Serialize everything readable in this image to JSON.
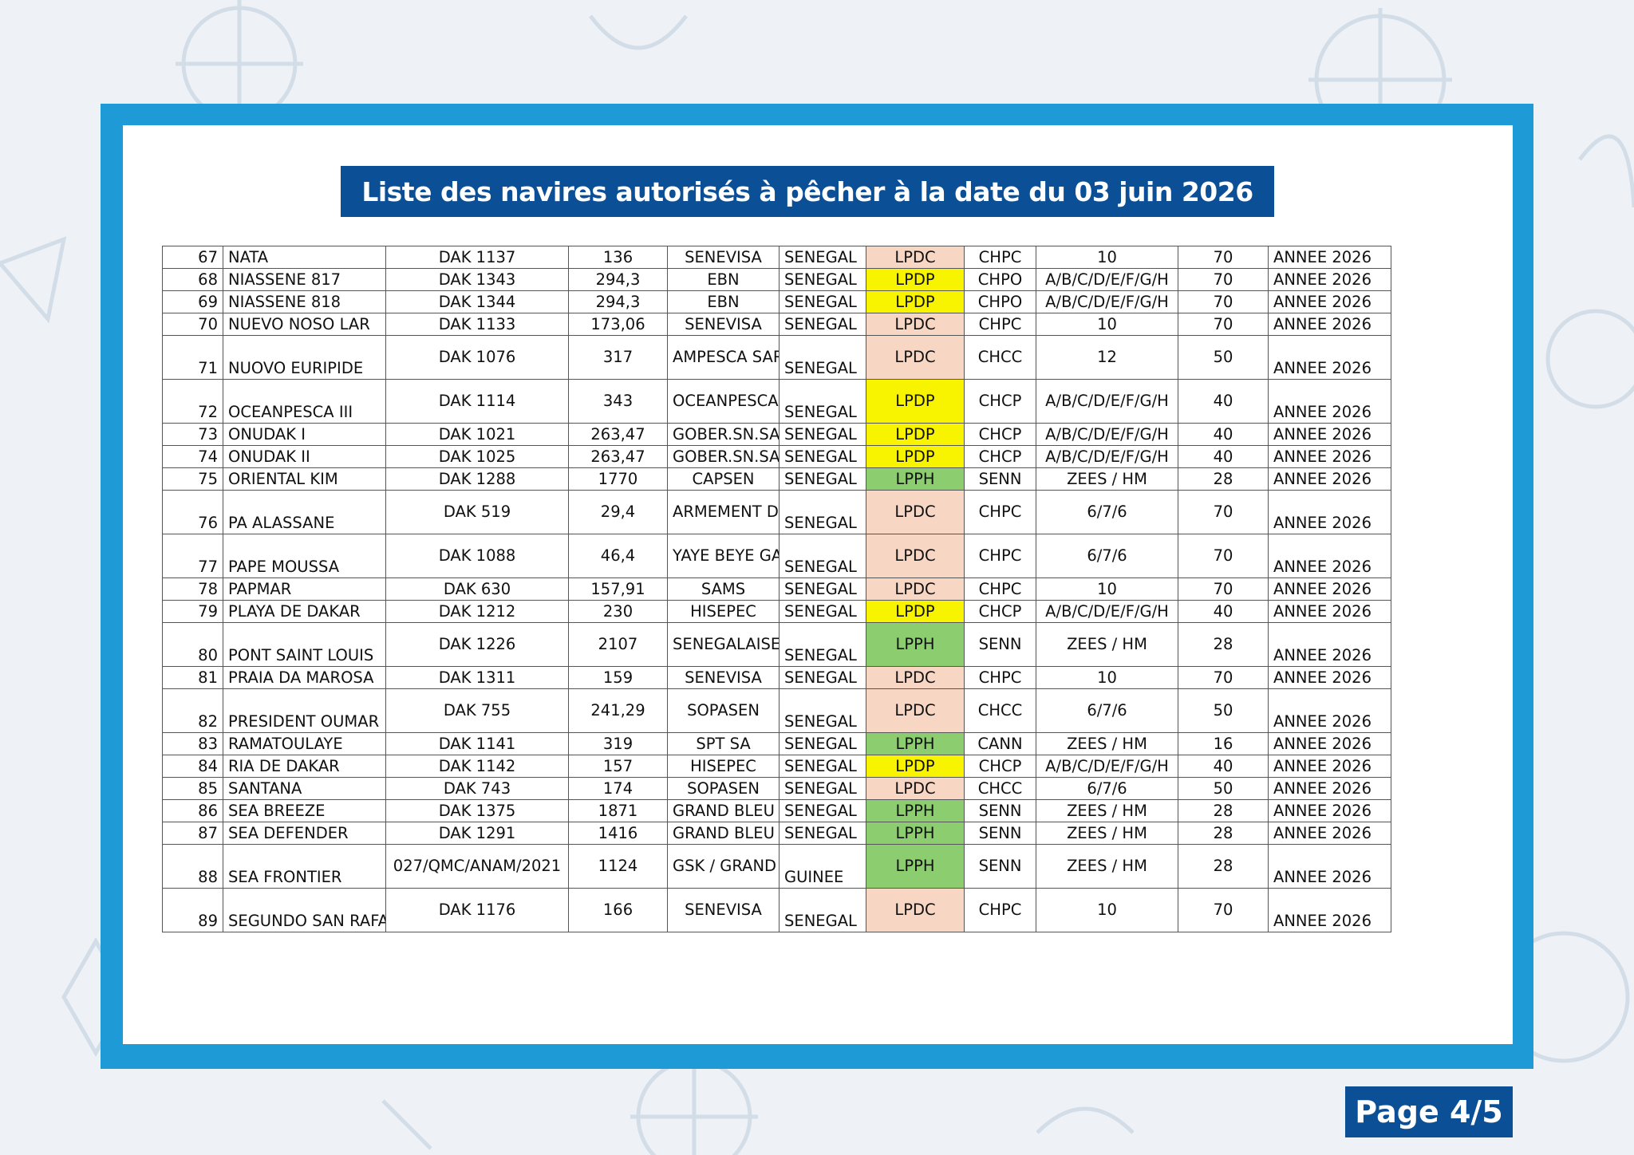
{
  "title": "Liste des navires autorisés à pêcher à la date du 03 juin 2026",
  "page_label": "Page 4/5",
  "colors": {
    "frame": "#1e9ad6",
    "title_bg": "#0b4f96",
    "LPDC": "#f7d6c4",
    "LPDP": "#f8f400",
    "LPPH": "#8ccd70"
  },
  "rows": [
    {
      "no": "67",
      "name": "NATA",
      "reg": "DAK 1137",
      "gt": "136",
      "owner": "SENEVISA",
      "flag": "SENEGAL",
      "licence": "LPDC",
      "type": "CHPC",
      "zones": "10",
      "val": "70",
      "period": "ANNEE 2026"
    },
    {
      "no": "68",
      "name": "NIASSENE 817",
      "reg": "DAK 1343",
      "gt": "294,3",
      "owner": "EBN",
      "flag": "SENEGAL",
      "licence": "LPDP",
      "type": "CHPO",
      "zones": "A/B/C/D/E/F/G/H",
      "val": "70",
      "period": "ANNEE 2026"
    },
    {
      "no": "69",
      "name": "NIASSENE 818",
      "reg": "DAK 1344",
      "gt": "294,3",
      "owner": "EBN",
      "flag": "SENEGAL",
      "licence": "LPDP",
      "type": "CHPO",
      "zones": "A/B/C/D/E/F/G/H",
      "val": "70",
      "period": "ANNEE 2026"
    },
    {
      "no": "70",
      "name": "NUEVO NOSO LAR",
      "reg": "DAK 1133",
      "gt": "173,06",
      "owner": "SENEVISA",
      "flag": "SENEGAL",
      "licence": "LPDC",
      "type": "CHPC",
      "zones": "10",
      "val": "70",
      "period": "ANNEE 2026"
    },
    {
      "no": "71",
      "name": "NUOVO EURIPIDE",
      "reg": "DAK 1076",
      "gt": "317",
      "owner": "AMPESCA SARL",
      "flag": "SENEGAL",
      "licence": "LPDC",
      "type": "CHCC",
      "zones": "12",
      "val": "50",
      "period": "ANNEE 2026",
      "tall": true
    },
    {
      "no": "72",
      "name": "OCEANPESCA III",
      "reg": "DAK 1114",
      "gt": "343",
      "owner": "OCEANPESCA II",
      "flag": "SENEGAL",
      "licence": "LPDP",
      "type": "CHCP",
      "zones": "A/B/C/D/E/F/G/H",
      "val": "40",
      "period": "ANNEE 2026",
      "tall": true
    },
    {
      "no": "73",
      "name": "ONUDAK I",
      "reg": "DAK 1021",
      "gt": "263,47",
      "owner": "GOBER.SN.SA",
      "flag": "SENEGAL",
      "licence": "LPDP",
      "type": "CHCP",
      "zones": "A/B/C/D/E/F/G/H",
      "val": "40",
      "period": "ANNEE 2026"
    },
    {
      "no": "74",
      "name": "ONUDAK II",
      "reg": "DAK 1025",
      "gt": "263,47",
      "owner": "GOBER.SN.SA",
      "flag": "SENEGAL",
      "licence": "LPDP",
      "type": "CHCP",
      "zones": "A/B/C/D/E/F/G/H",
      "val": "40",
      "period": "ANNEE 2026"
    },
    {
      "no": "75",
      "name": "ORIENTAL KIM",
      "reg": "DAK 1288",
      "gt": "1770",
      "owner": "CAPSEN",
      "flag": "SENEGAL",
      "licence": "LPPH",
      "type": "SENN",
      "zones": "ZEES / HM",
      "val": "28",
      "period": "ANNEE 2026"
    },
    {
      "no": "76",
      "name": "PA ALASSANE",
      "reg": "DAK 519",
      "gt": "29,4",
      "owner": "ARMEMENT DEMBA SOW",
      "flag": "SENEGAL",
      "licence": "LPDC",
      "type": "CHPC",
      "zones": "6/7/6",
      "val": "70",
      "period": "ANNEE 2026",
      "tall": true
    },
    {
      "no": "77",
      "name": "PAPE MOUSSA",
      "reg": "DAK 1088",
      "gt": "46,4",
      "owner": "YAYE BEYE GASSAMA",
      "flag": "SENEGAL",
      "licence": "LPDC",
      "type": "CHPC",
      "zones": "6/7/6",
      "val": "70",
      "period": "ANNEE 2026",
      "tall": true
    },
    {
      "no": "78",
      "name": "PAPMAR",
      "reg": "DAK 630",
      "gt": "157,91",
      "owner": "SAMS",
      "flag": "SENEGAL",
      "licence": "LPDC",
      "type": "CHPC",
      "zones": "10",
      "val": "70",
      "period": "ANNEE 2026"
    },
    {
      "no": "79",
      "name": "PLAYA DE DAKAR",
      "reg": "DAK 1212",
      "gt": "230",
      "owner": "HISEPEC",
      "flag": "SENEGAL",
      "licence": "LPDP",
      "type": "CHCP",
      "zones": "A/B/C/D/E/F/G/H",
      "val": "40",
      "period": "ANNEE 2026"
    },
    {
      "no": "80",
      "name": "PONT SAINT LOUIS",
      "reg": "DAK 1226",
      "gt": "2107",
      "owner": "SENEGALAISE DE THON",
      "flag": "SENEGAL",
      "licence": "LPPH",
      "type": "SENN",
      "zones": "ZEES / HM",
      "val": "28",
      "period": "ANNEE 2026",
      "tall": true
    },
    {
      "no": "81",
      "name": "PRAIA DA MAROSA",
      "reg": "DAK 1311",
      "gt": "159",
      "owner": "SENEVISA",
      "flag": "SENEGAL",
      "licence": "LPDC",
      "type": "CHPC",
      "zones": "10",
      "val": "70",
      "period": "ANNEE 2026"
    },
    {
      "no": "82",
      "name": "PRESIDENT OUMAR DIALLO",
      "reg": "DAK 755",
      "gt": "241,29",
      "owner": "SOPASEN",
      "flag": "SENEGAL",
      "licence": "LPDC",
      "type": "CHCC",
      "zones": "6/7/6",
      "val": "50",
      "period": "ANNEE 2026",
      "tall": true
    },
    {
      "no": "83",
      "name": "RAMATOULAYE",
      "reg": "DAK 1141",
      "gt": "319",
      "owner": "SPT SA",
      "flag": "SENEGAL",
      "licence": "LPPH",
      "type": "CANN",
      "zones": "ZEES / HM",
      "val": "16",
      "period": "ANNEE 2026"
    },
    {
      "no": "84",
      "name": "RIA DE DAKAR",
      "reg": "DAK 1142",
      "gt": "157",
      "owner": "HISEPEC",
      "flag": "SENEGAL",
      "licence": "LPDP",
      "type": "CHCP",
      "zones": "A/B/C/D/E/F/G/H",
      "val": "40",
      "period": "ANNEE 2026"
    },
    {
      "no": "85",
      "name": "SANTANA",
      "reg": "DAK 743",
      "gt": "174",
      "owner": "SOPASEN",
      "flag": "SENEGAL",
      "licence": "LPDC",
      "type": "CHCC",
      "zones": "6/7/6",
      "val": "50",
      "period": "ANNEE 2026"
    },
    {
      "no": "86",
      "name": "SEA BREEZE",
      "reg": "DAK 1375",
      "gt": "1871",
      "owner": "GRAND BLEU",
      "flag": "SENEGAL",
      "licence": "LPPH",
      "type": "SENN",
      "zones": "ZEES / HM",
      "val": "28",
      "period": "ANNEE 2026"
    },
    {
      "no": "87",
      "name": "SEA DEFENDER",
      "reg": "DAK 1291",
      "gt": "1416",
      "owner": "GRAND BLEU",
      "flag": "SENEGAL",
      "licence": "LPPH",
      "type": "SENN",
      "zones": "ZEES / HM",
      "val": "28",
      "period": "ANNEE 2026"
    },
    {
      "no": "88",
      "name": "SEA FRONTIER",
      "reg": "027/QMC/ANAM/2021",
      "gt": "1124",
      "owner": "GSK / GRAND BLEU",
      "flag": "GUINEE",
      "licence": "LPPH",
      "type": "SENN",
      "zones": "ZEES / HM",
      "val": "28",
      "period": "ANNEE 2026",
      "tall": true
    },
    {
      "no": "89",
      "name": "SEGUNDO SAN RAFAEL",
      "reg": "DAK 1176",
      "gt": "166",
      "owner": "SENEVISA",
      "flag": "SENEGAL",
      "licence": "LPDC",
      "type": "CHPC",
      "zones": "10",
      "val": "70",
      "period": "ANNEE 2026",
      "tall": true
    }
  ]
}
